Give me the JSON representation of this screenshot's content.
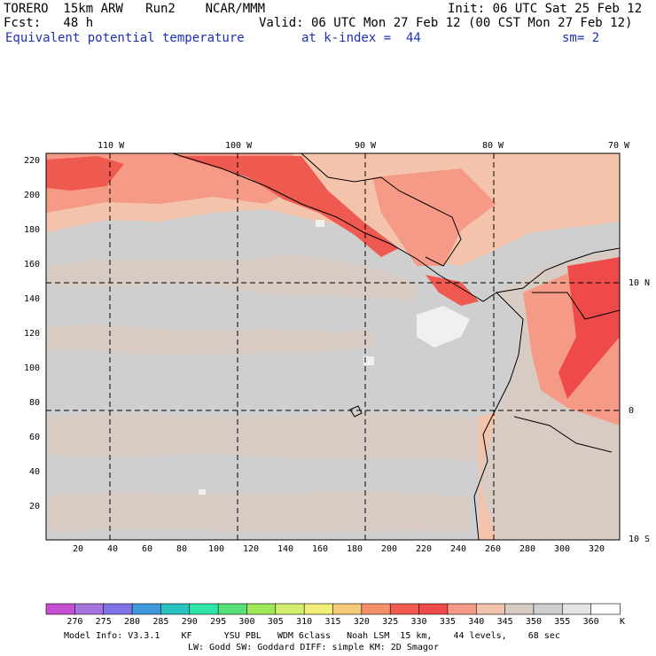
{
  "header": {
    "model": "TORERO  15km ARW   Run2    NCAR/MMM",
    "init": "Init: 06 UTC Sat 25 Feb 12",
    "fcst": "Fcst:   48 h",
    "valid": "Valid: 06 UTC Mon 27 Feb 12 (00 CST Mon 27 Feb 12)",
    "field": "Equivalent potential temperature",
    "level": "at k-index =  44",
    "smoothing": "sm= 2"
  },
  "map": {
    "top_lon_labels": [
      "110 W",
      "100 W",
      "90 W",
      "80 W",
      "70 W"
    ],
    "right_lat_labels": [
      "10 N",
      "0",
      "10 S"
    ],
    "left_grid_labels": [
      "220",
      "200",
      "180",
      "160",
      "140",
      "120",
      "100",
      "80",
      "60",
      "40",
      "20"
    ],
    "bottom_grid_labels": [
      "20",
      "40",
      "60",
      "80",
      "100",
      "120",
      "140",
      "160",
      "180",
      "200",
      "220",
      "240",
      "260",
      "280",
      "300",
      "320"
    ]
  },
  "colorbar": {
    "levels": [
      "270",
      "275",
      "280",
      "285",
      "290",
      "295",
      "300",
      "305",
      "310",
      "315",
      "320",
      "325",
      "330",
      "335",
      "340",
      "345",
      "350",
      "355",
      "360"
    ],
    "unit": "K",
    "colors": [
      "#c64fd2",
      "#a574de",
      "#7f72e8",
      "#3f98dc",
      "#2bc2c2",
      "#2fe6a8",
      "#58e07a",
      "#9ee85a",
      "#d2ef6e",
      "#f3ee78",
      "#f7c97a",
      "#f5916a",
      "#f15a4e",
      "#ef4a4a",
      "#f59a86",
      "#f4c3ac",
      "#d7cbc3",
      "#cfcfcf",
      "#e4e4e4",
      "#ffffff"
    ]
  },
  "footer": {
    "line1": "Model Info: V3.3.1    KF      YSU PBL   WDM 6class   Noah LSM  15 km,    44 levels,    68 sec",
    "line2": "LW: Godd SW: Goddard DIFF: simple KM: 2D Smagor"
  }
}
